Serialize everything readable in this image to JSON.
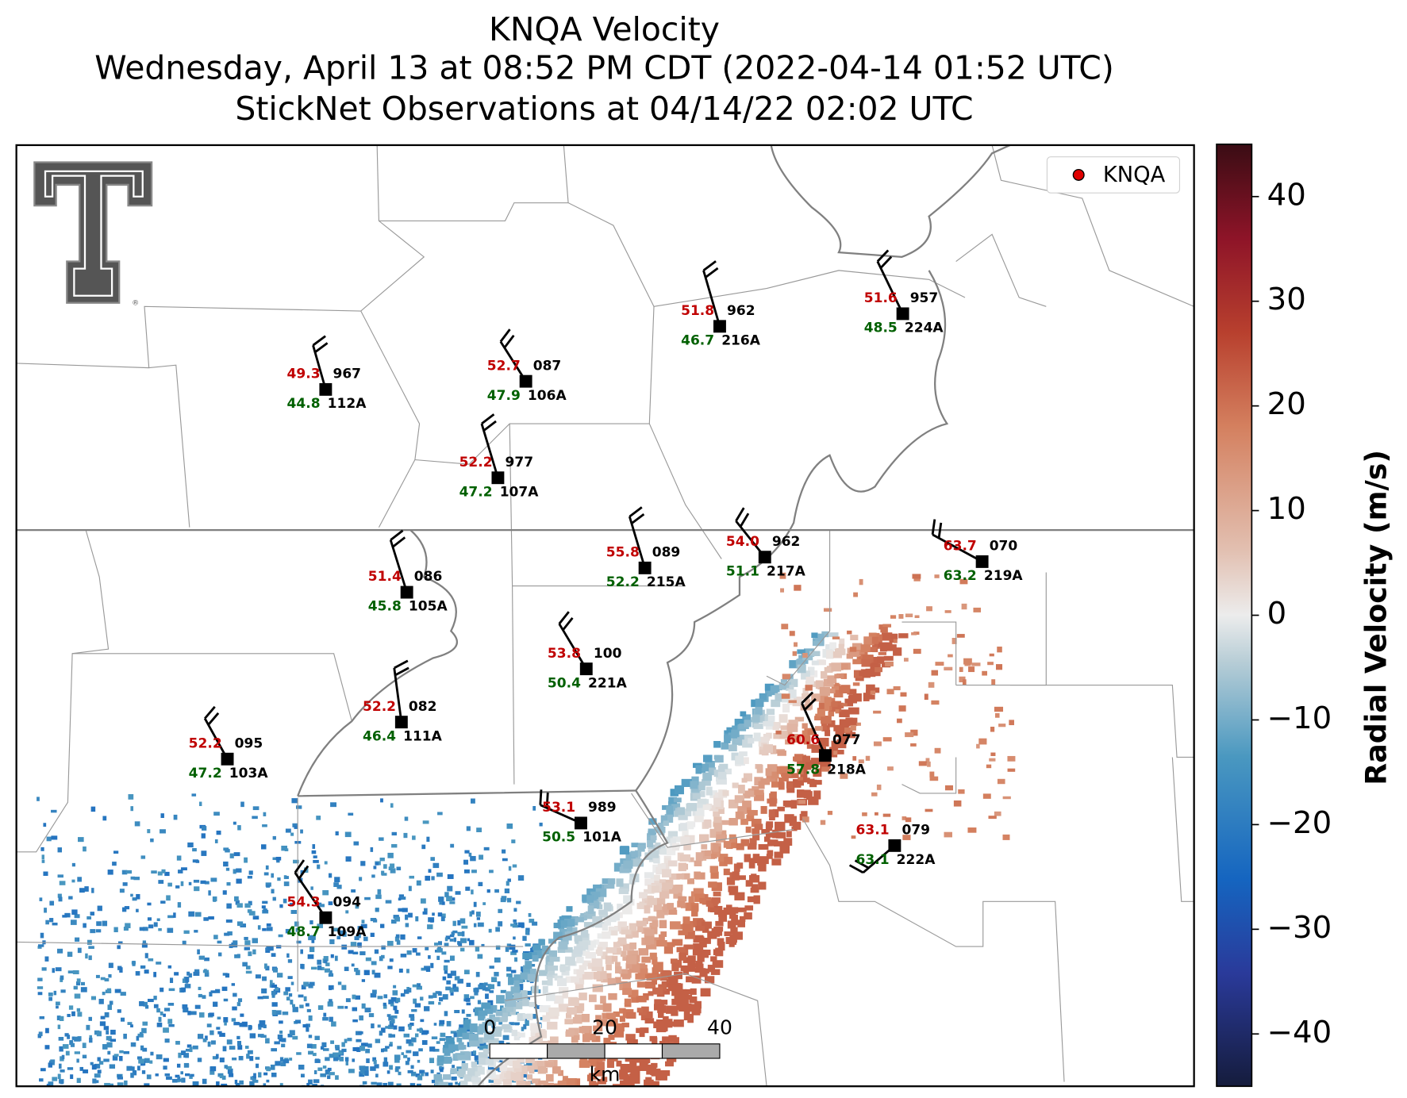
{
  "title": {
    "line1": "KNQA Velocity",
    "line2": "Wednesday, April 13 at 08:52 PM CDT (2022-04-14 01:52 UTC)",
    "line3": "StickNet Observations at 04/14/22 02:02 UTC"
  },
  "logo_mark": "®",
  "legend": {
    "label": "KNQA",
    "color": "#e00000"
  },
  "stations": [
    {
      "temp": "49.3",
      "dew": "44.8",
      "pressure": "967",
      "id": "112A"
    },
    {
      "temp": "52.7",
      "dew": "47.9",
      "pressure": "087",
      "id": "106A"
    },
    {
      "temp": "51.8",
      "dew": "46.7",
      "pressure": "962",
      "id": "216A"
    },
    {
      "temp": "51.6",
      "dew": "48.5",
      "pressure": "957",
      "id": "224A"
    },
    {
      "temp": "52.2",
      "dew": "47.2",
      "pressure": "977",
      "id": "107A"
    },
    {
      "temp": "51.4",
      "dew": "45.8",
      "pressure": "086",
      "id": "105A"
    },
    {
      "temp": "55.8",
      "dew": "52.2",
      "pressure": "089",
      "id": "215A"
    },
    {
      "temp": "54.0",
      "dew": "51.1",
      "pressure": "962",
      "id": "217A"
    },
    {
      "temp": "63.7",
      "dew": "63.2",
      "pressure": "070",
      "id": "219A"
    },
    {
      "temp": "53.8",
      "dew": "50.4",
      "pressure": "100",
      "id": "221A"
    },
    {
      "temp": "52.2",
      "dew": "46.4",
      "pressure": "082",
      "id": "111A"
    },
    {
      "temp": "52.2",
      "dew": "47.2",
      "pressure": "095",
      "id": "103A"
    },
    {
      "temp": "60.6",
      "dew": "57.8",
      "pressure": "077",
      "id": "218A"
    },
    {
      "temp": "53.1",
      "dew": "50.5",
      "pressure": "989",
      "id": "101A"
    },
    {
      "temp": "63.1",
      "dew": "63.1",
      "pressure": "079",
      "id": "222A"
    },
    {
      "temp": "54.3",
      "dew": "48.7",
      "pressure": "094",
      "id": "109A"
    }
  ],
  "colorbar": {
    "label": "Radial Velocity (m/s)",
    "lim": [
      -45,
      45
    ],
    "ticks": [
      {
        "value": -40,
        "label": "−40"
      },
      {
        "value": -30,
        "label": "−30"
      },
      {
        "value": -20,
        "label": "−20"
      },
      {
        "value": -10,
        "label": "−10"
      },
      0,
      10,
      20,
      30,
      40
    ]
  },
  "scale_bar": {
    "unit": "km",
    "ticks": [
      0,
      20,
      40
    ],
    "max": 40
  }
}
